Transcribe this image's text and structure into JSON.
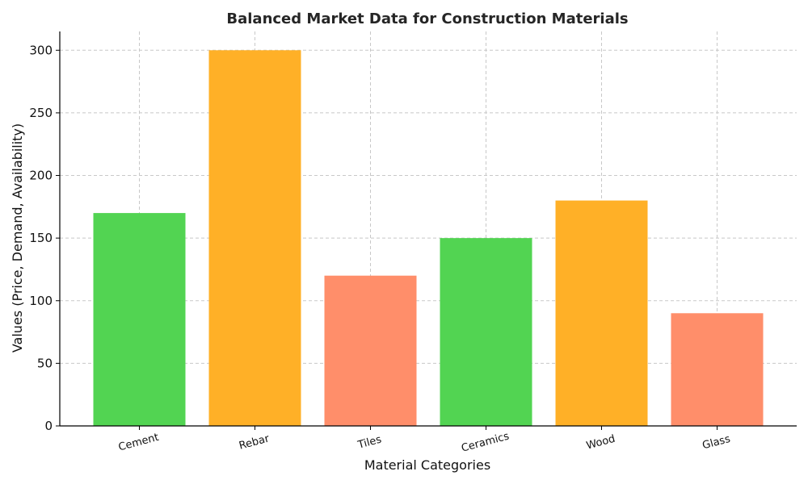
{
  "chart_data": {
    "type": "bar",
    "title": "Balanced Market Data for Construction Materials",
    "xlabel": "Material Categories",
    "ylabel": "Values (Price, Demand, Availability)",
    "categories": [
      "Cement",
      "Rebar",
      "Tiles",
      "Ceramics",
      "Wood",
      "Glass"
    ],
    "values": [
      170,
      300,
      120,
      150,
      180,
      90
    ],
    "colors": [
      "#52d452",
      "#ffb027",
      "#ff8e6a",
      "#52d452",
      "#ffb027",
      "#ff8e6a"
    ],
    "ylim": [
      0,
      315
    ],
    "yticks": [
      0,
      50,
      100,
      150,
      200,
      250,
      300
    ],
    "grid": true,
    "xtick_rotation": -15
  }
}
